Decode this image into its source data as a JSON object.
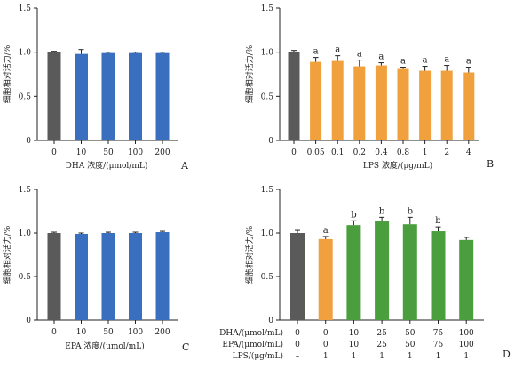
{
  "chart_data": [
    {
      "type": "bar",
      "panel": "A",
      "categories": [
        "0",
        "10",
        "50",
        "100",
        "200"
      ],
      "values": [
        1.0,
        0.98,
        0.99,
        0.99,
        0.99
      ],
      "errors": [
        0.01,
        0.05,
        0.01,
        0.01,
        0.01
      ],
      "colors": [
        "#5a5a5a",
        "#3a6fbf",
        "#3a6fbf",
        "#3a6fbf",
        "#3a6fbf"
      ],
      "annotations": [
        "",
        "",
        "",
        "",
        ""
      ],
      "xlabel": "DHA 浓度/(μmol/mL)",
      "ylabel": "细胞相对活力/%",
      "ylim": [
        0,
        1.5
      ],
      "yticks": [
        "0",
        "0.5",
        "1.0",
        "1.5"
      ]
    },
    {
      "type": "bar",
      "panel": "B",
      "categories": [
        "0",
        "0.05",
        "0.1",
        "0.2",
        "0.4",
        "0.8",
        "1",
        "2",
        "4"
      ],
      "values": [
        1.0,
        0.89,
        0.9,
        0.84,
        0.85,
        0.81,
        0.79,
        0.79,
        0.77
      ],
      "errors": [
        0.02,
        0.05,
        0.06,
        0.07,
        0.03,
        0.02,
        0.05,
        0.06,
        0.06
      ],
      "colors": [
        "#5a5a5a",
        "#f0a03c",
        "#f0a03c",
        "#f0a03c",
        "#f0a03c",
        "#f0a03c",
        "#f0a03c",
        "#f0a03c",
        "#f0a03c"
      ],
      "annotations": [
        "",
        "a",
        "a",
        "a",
        "a",
        "a",
        "a",
        "a",
        "a"
      ],
      "xlabel": "LPS 浓度/(μg/mL)",
      "ylabel": "细胞相对活力/%",
      "ylim": [
        0,
        1.5
      ],
      "yticks": [
        "0",
        "0.5",
        "1.0",
        "1.5"
      ]
    },
    {
      "type": "bar",
      "panel": "C",
      "categories": [
        "0",
        "10",
        "50",
        "100",
        "200"
      ],
      "values": [
        1.0,
        0.99,
        1.0,
        1.0,
        1.01
      ],
      "errors": [
        0.01,
        0.01,
        0.01,
        0.01,
        0.01
      ],
      "colors": [
        "#5a5a5a",
        "#3a6fbf",
        "#3a6fbf",
        "#3a6fbf",
        "#3a6fbf"
      ],
      "annotations": [
        "",
        "",
        "",
        "",
        ""
      ],
      "xlabel": "EPA 浓度/(μmol/mL)",
      "ylabel": "细胞相对活力/%",
      "ylim": [
        0,
        1.5
      ],
      "yticks": [
        "0",
        "0.5",
        "1.0",
        "1.5"
      ]
    },
    {
      "type": "bar",
      "panel": "D",
      "categories": [
        "1",
        "2",
        "3",
        "4",
        "5",
        "6",
        "7"
      ],
      "values": [
        1.0,
        0.93,
        1.09,
        1.14,
        1.1,
        1.02,
        0.92
      ],
      "errors": [
        0.03,
        0.03,
        0.05,
        0.04,
        0.08,
        0.05,
        0.03
      ],
      "colors": [
        "#5a5a5a",
        "#f0a03c",
        "#4a9e3e",
        "#4a9e3e",
        "#4a9e3e",
        "#4a9e3e",
        "#4a9e3e"
      ],
      "annotations": [
        "",
        "a",
        "b",
        "b",
        "b",
        "b",
        ""
      ],
      "ylabel": "细胞相对活力/%",
      "ylim": [
        0,
        1.5
      ],
      "yticks": [
        "0",
        "0.5",
        "1.0",
        "1.5"
      ],
      "table_rows": [
        {
          "label": "DHA/(μmol/mL)",
          "values": [
            "0",
            "0",
            "10",
            "25",
            "50",
            "75",
            "100"
          ]
        },
        {
          "label": "EPA/(μmol/mL)",
          "values": [
            "0",
            "0",
            "10",
            "25",
            "50",
            "75",
            "100"
          ]
        },
        {
          "label": "LPS/(μg/mL)",
          "values": [
            "–",
            "1",
            "1",
            "1",
            "1",
            "1",
            "1"
          ]
        }
      ]
    }
  ]
}
